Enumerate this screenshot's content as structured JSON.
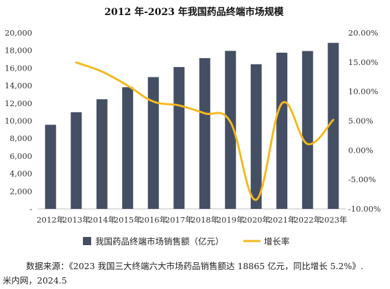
{
  "chart_data": {
    "type": "bar",
    "title": "2012 年-2023 年我国药品终端市场规模",
    "categories": [
      "2012年",
      "2013年",
      "2014年",
      "2015年",
      "2016年",
      "2017年",
      "2018年",
      "2019年",
      "2020年",
      "2021年",
      "2022年",
      "2023年"
    ],
    "series": [
      {
        "name": "我国药品终端市场销售额（亿元）",
        "type": "bar",
        "axis": "left",
        "color": "#444f64",
        "values": [
          9555,
          10985,
          12457,
          13829,
          14975,
          16118,
          17131,
          17955,
          16437,
          17747,
          17936,
          18865
        ]
      },
      {
        "name": "增长率",
        "type": "line",
        "axis": "right",
        "color": "#f5b91e",
        "values": [
          null,
          14.96,
          13.4,
          11.01,
          8.29,
          7.63,
          6.28,
          4.81,
          -8.45,
          7.97,
          1.06,
          5.18
        ]
      }
    ],
    "y_left": {
      "min": 0,
      "max": 20000,
      "ticks": [
        "-",
        "2,000",
        "4,000",
        "6,000",
        "8,000",
        "10,000",
        "12,000",
        "14,000",
        "16,000",
        "18,000",
        "20,000"
      ]
    },
    "y_right": {
      "min": -10,
      "max": 20,
      "ticks": [
        "-10.00%",
        "-5.00%",
        "0.00%",
        "5.00%",
        "10.00%",
        "15.00%",
        "20.00%"
      ]
    },
    "legend_position": "bottom",
    "grid": false
  },
  "source": {
    "line1": "数据来源：《2023 我国三大终端六大市场药品销售额达 18865 亿元，同比增长 5.2%》.",
    "line2": "米内网，2024.5"
  }
}
